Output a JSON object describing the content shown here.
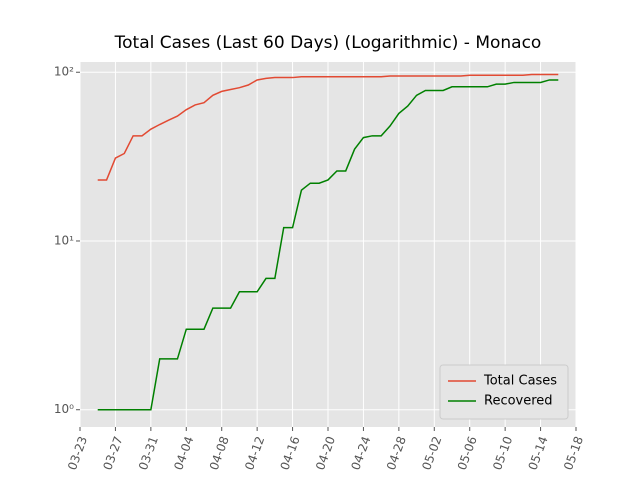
{
  "chart_data": {
    "type": "line",
    "title": "Total Cases (Last 60 Days) (Logarithmic) - Monaco",
    "x": [
      "03-25",
      "03-26",
      "03-27",
      "03-28",
      "03-29",
      "03-30",
      "03-31",
      "04-01",
      "04-02",
      "04-03",
      "04-04",
      "04-05",
      "04-06",
      "04-07",
      "04-08",
      "04-09",
      "04-10",
      "04-11",
      "04-12",
      "04-13",
      "04-14",
      "04-15",
      "04-16",
      "04-17",
      "04-18",
      "04-19",
      "04-20",
      "04-21",
      "04-22",
      "04-23",
      "04-24",
      "04-25",
      "04-26",
      "04-27",
      "04-28",
      "04-29",
      "04-30",
      "05-01",
      "05-02",
      "05-03",
      "05-04",
      "05-05",
      "05-06",
      "05-07",
      "05-08",
      "05-09",
      "05-10",
      "05-11",
      "05-12",
      "05-13",
      "05-14",
      "05-15",
      "05-16"
    ],
    "series": [
      {
        "name": "Total Cases",
        "color": "#E24A33",
        "values": [
          23,
          23,
          31,
          33,
          42,
          42,
          46,
          49,
          52,
          55,
          60,
          64,
          66,
          73,
          77,
          79,
          81,
          84,
          90,
          92,
          93,
          93,
          93,
          94,
          94,
          94,
          94,
          94,
          94,
          94,
          94,
          94,
          94,
          95,
          95,
          95,
          95,
          95,
          95,
          95,
          95,
          95,
          96,
          96,
          96,
          96,
          96,
          96,
          96,
          97,
          97,
          97,
          97
        ]
      },
      {
        "name": "Recovered",
        "color": "#008000",
        "values": [
          1,
          1,
          1,
          1,
          1,
          1,
          1,
          2,
          2,
          2,
          3,
          3,
          3,
          4,
          4,
          4,
          5,
          5,
          5,
          6,
          6,
          12,
          12,
          20,
          22,
          22,
          23,
          26,
          26,
          35,
          41,
          42,
          42,
          48,
          57,
          63,
          73,
          78,
          78,
          78,
          82,
          82,
          82,
          82,
          82,
          85,
          85,
          87,
          87,
          87,
          87,
          90,
          90
        ]
      }
    ],
    "xlim": [
      "03-23",
      "05-18"
    ],
    "xticks": [
      "03-23",
      "03-27",
      "03-31",
      "04-04",
      "04-08",
      "04-12",
      "04-16",
      "04-20",
      "04-24",
      "04-28",
      "05-02",
      "05-06",
      "05-10",
      "05-14",
      "05-18"
    ],
    "ylim": [
      0.79,
      115
    ],
    "yticks": [
      {
        "value": 1,
        "label": "10⁰"
      },
      {
        "value": 10,
        "label": "10¹"
      },
      {
        "value": 100,
        "label": "10²"
      }
    ],
    "log_y": true,
    "grid": true,
    "legend": "lower right"
  }
}
